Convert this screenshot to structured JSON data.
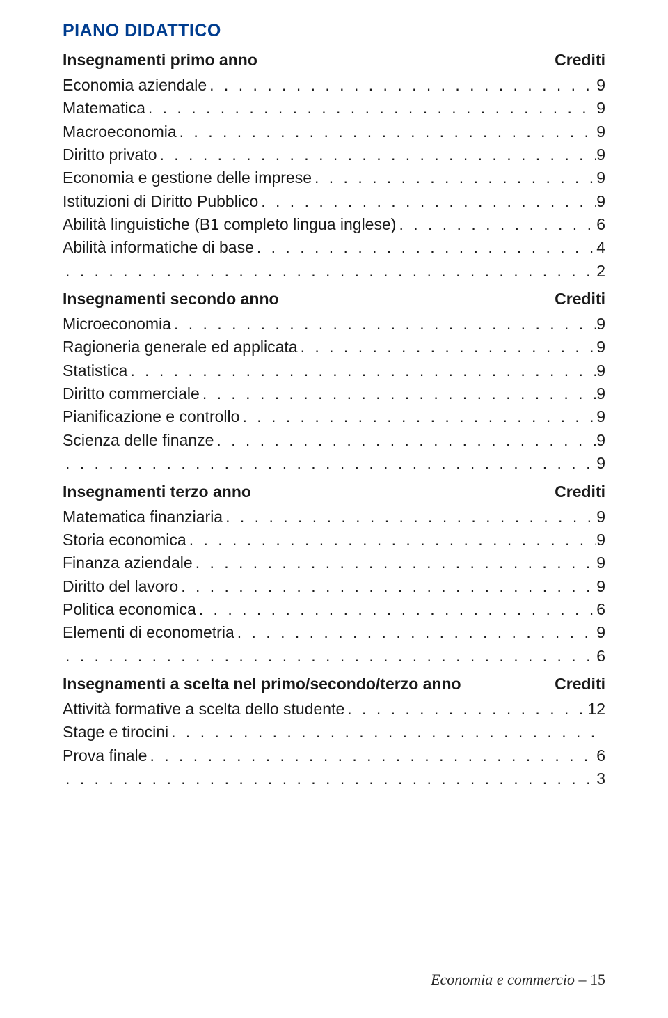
{
  "title": "PIANO DIDATTICO",
  "credits_label": "Crediti",
  "sections": [
    {
      "heading": "Insegnamenti primo anno",
      "items": [
        {
          "label": "Economia aziendale",
          "value": "9"
        },
        {
          "label": "Matematica",
          "value": "9"
        },
        {
          "label": "Macroeconomia",
          "value": "9"
        },
        {
          "label": "Diritto privato",
          "value": "9"
        },
        {
          "label": "Economia e gestione delle imprese",
          "value": "9"
        },
        {
          "label": "Istituzioni di Diritto Pubblico",
          "value": "9"
        },
        {
          "label": "Abilità linguistiche (B1 completo lingua inglese)",
          "value": "6"
        },
        {
          "label": "Abilità informatiche di base",
          "value": "4"
        },
        {
          "label": "",
          "value": "2"
        }
      ]
    },
    {
      "heading": "Insegnamenti secondo anno",
      "items": [
        {
          "label": "Microeconomia",
          "value": "9"
        },
        {
          "label": "Ragioneria generale ed applicata",
          "value": "9"
        },
        {
          "label": "Statistica",
          "value": "9"
        },
        {
          "label": "Diritto commerciale",
          "value": "9"
        },
        {
          "label": "Pianificazione e controllo",
          "value": "9"
        },
        {
          "label": "Scienza delle finanze",
          "value": "9"
        },
        {
          "label": "",
          "value": "9"
        }
      ]
    },
    {
      "heading": "Insegnamenti terzo anno",
      "items": [
        {
          "label": "Matematica finanziaria",
          "value": "9"
        },
        {
          "label": "Storia economica",
          "value": "9"
        },
        {
          "label": "Finanza aziendale",
          "value": "9"
        },
        {
          "label": "Diritto del lavoro",
          "value": "9"
        },
        {
          "label": "Politica economica",
          "value": "6"
        },
        {
          "label": "Elementi di econometria",
          "value": "9"
        },
        {
          "label": "",
          "value": "6"
        }
      ]
    },
    {
      "heading": "Insegnamenti a scelta nel primo/secondo/terzo anno",
      "items": [
        {
          "label": "Attività formative a scelta dello studente",
          "value": "12"
        },
        {
          "label": "Stage e tirocini",
          "value": ""
        },
        {
          "label": "Prova finale",
          "value": "6"
        },
        {
          "label": "",
          "value": "3"
        }
      ]
    }
  ],
  "footer": {
    "text": "Economia e commercio",
    "sep": " – ",
    "page": "15"
  },
  "colors": {
    "title": "#003d8f",
    "text": "#1a1a1a",
    "background": "#ffffff"
  }
}
